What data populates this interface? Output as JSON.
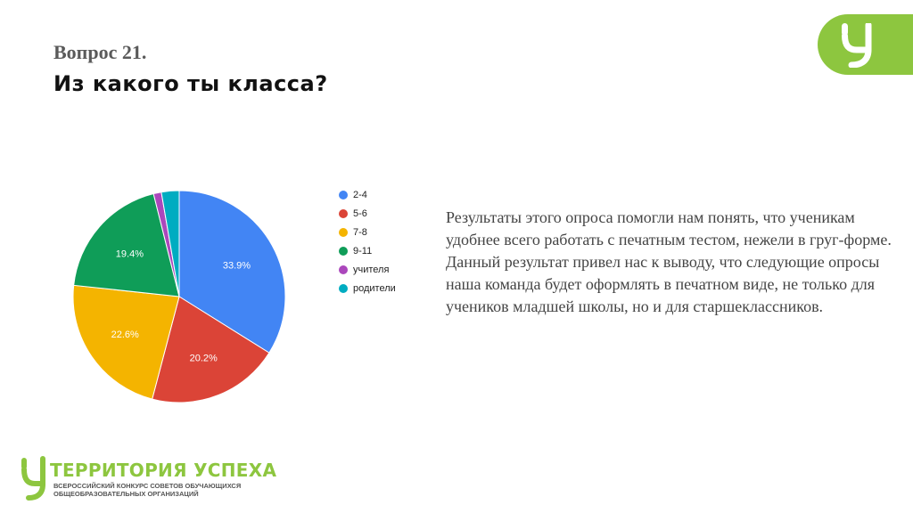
{
  "header": {
    "question_number": "Вопрос 21.",
    "question_text": "Из какого ты класса?"
  },
  "brand": {
    "accent_color": "#8dc63f",
    "corner_icon": "u-logo-icon"
  },
  "chart_data": {
    "type": "pie",
    "title": "",
    "start_angle_deg": 0,
    "direction": "clockwise",
    "legend_position": "right",
    "categories": [
      "2-4",
      "5-6",
      "7-8",
      "9-11",
      "учителя",
      "родители"
    ],
    "values": [
      33.9,
      20.2,
      22.6,
      19.4,
      1.2,
      2.7
    ],
    "colors": [
      "#4285f4",
      "#db4437",
      "#f4b400",
      "#0f9d58",
      "#ab47bc",
      "#00acc1"
    ],
    "data_labels": [
      "33.9%",
      "20.2%",
      "22.6%",
      "19.4%",
      "",
      ""
    ]
  },
  "description": {
    "paragraph_1": "Результаты этого опроса помогли нам понять, что ученикам удобнее всего работать с печатным тестом, нежели в груг-форме.",
    "paragraph_2": "Данный результат привел нас к выводу, что следующие опросы наша команда будет оформлять в печатном виде, не только для учеников младшей школы, но и для старшеклассников."
  },
  "footer": {
    "title": "ТЕРРИТОРИЯ УСПЕХА",
    "subtitle_line1": "ВСЕРОССИЙСКИЙ КОНКУРС СОВЕТОВ ОБУЧАЮЩИХСЯ",
    "subtitle_line2": "ОБЩЕОБРАЗОВАТЕЛЬНЫХ ОРГАНИЗАЦИЙ",
    "logo_icon": "u-logo-icon"
  }
}
